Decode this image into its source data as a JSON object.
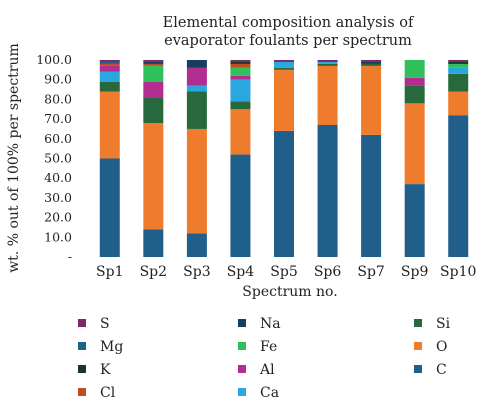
{
  "chart_data": {
    "type": "bar",
    "stacked": true,
    "title": "Elemental composition analysis of evaporator foulants per spectrum",
    "title_lines": [
      "Elemental composition analysis of",
      "evaporator foulants per spectrum"
    ],
    "xlabel": "Spectrum no.",
    "ylabel": "wt. % out of 100% per spectrum",
    "ylim": [
      0,
      100
    ],
    "yticks": [
      "-",
      "10.0",
      "20.0",
      "30.0",
      "40.0",
      "50.0",
      "60.0",
      "70.0",
      "80.0",
      "90.0",
      "100.0"
    ],
    "categories": [
      "Sp1",
      "Sp2",
      "Sp3",
      "Sp4",
      "Sp5",
      "Sp6",
      "Sp7",
      "Sp9",
      "Sp10"
    ],
    "grid": false,
    "legend_position": "bottom",
    "series": [
      {
        "name": "C",
        "color": "#1f5f8a",
        "values": [
          50,
          14,
          12,
          52,
          64,
          67,
          62,
          37,
          72
        ]
      },
      {
        "name": "O",
        "color": "#ef7b2c",
        "values": [
          34,
          54,
          53,
          23,
          31,
          30,
          35,
          41,
          12
        ]
      },
      {
        "name": "Si",
        "color": "#27683d",
        "values": [
          5,
          13,
          19,
          4,
          1,
          1,
          1,
          9,
          9
        ]
      },
      {
        "name": "Ca",
        "color": "#2aa7de",
        "values": [
          5,
          0,
          3,
          11,
          3,
          1,
          0,
          0,
          3
        ]
      },
      {
        "name": "Al",
        "color": "#b12d92",
        "values": [
          3,
          8,
          9,
          2,
          0,
          0,
          0,
          4,
          0
        ]
      },
      {
        "name": "Fe",
        "color": "#2fbf5b",
        "values": [
          0,
          8,
          0,
          4,
          0,
          0,
          0,
          9,
          2
        ]
      },
      {
        "name": "Cl",
        "color": "#c14e21",
        "values": [
          1,
          1,
          0,
          2,
          0,
          0,
          0,
          0,
          0
        ]
      },
      {
        "name": "K",
        "color": "#123b22",
        "values": [
          0,
          0,
          0,
          1,
          0,
          0,
          0,
          0,
          1
        ]
      },
      {
        "name": "Mg",
        "color": "#1f5f8a",
        "values": [
          1,
          0,
          0,
          0,
          0,
          0,
          0,
          0,
          0
        ]
      },
      {
        "name": "Na",
        "color": "#173d5e",
        "values": [
          0,
          1,
          4,
          0,
          0,
          0,
          1,
          0,
          0
        ]
      },
      {
        "name": "S",
        "color": "#7a2a66",
        "values": [
          1,
          1,
          0,
          1,
          1,
          1,
          1,
          0,
          1
        ]
      }
    ],
    "legend_columns": [
      [
        "S",
        "Mg",
        "K",
        "Cl"
      ],
      [
        "Na",
        "Fe",
        "Al",
        "Ca"
      ],
      [
        "Si",
        "O",
        "C"
      ]
    ]
  }
}
